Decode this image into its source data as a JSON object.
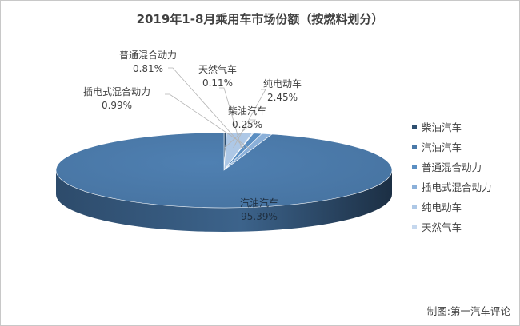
{
  "chart_data": {
    "type": "pie",
    "style": "3d",
    "title": "2019年1-8月乘用车市场份额（按燃料划分）",
    "categories": [
      "柴油汽车",
      "汽油汽车",
      "普通混合动力",
      "插电式混合动力",
      "纯电动车",
      "天然气车"
    ],
    "values": [
      0.25,
      95.39,
      0.81,
      0.99,
      2.45,
      0.11
    ],
    "value_labels": [
      "0.25%",
      "95.39%",
      "0.81%",
      "0.99%",
      "2.45%",
      "0.11%"
    ],
    "colors": [
      "#2e4f6f",
      "#4a79a8",
      "#5a8ec2",
      "#8bb0d9",
      "#aec8e6",
      "#c6d8ee"
    ],
    "legend_position": "right"
  },
  "credit": "制图:第一汽车评论"
}
